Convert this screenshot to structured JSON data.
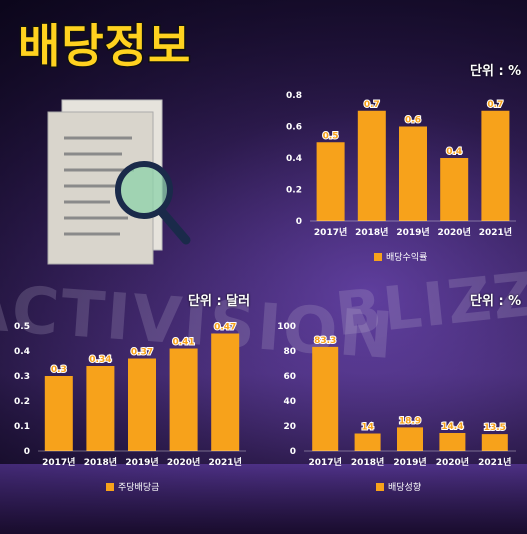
{
  "title": "배당정보",
  "colors": {
    "bar": "#f7a21b",
    "label": "#f7a21b",
    "axis_text": "#ffffff",
    "title": "#ffd21f"
  },
  "icons": {
    "document": "document-search-icon"
  },
  "watermark": {
    "left_text": "ACTIVISION",
    "right_text": "BLIZZARD"
  },
  "chart_data": [
    {
      "id": "dividend-yield",
      "type": "bar",
      "unit": "단위 : %",
      "categories": [
        "2017년",
        "2018년",
        "2019년",
        "2020년",
        "2021년"
      ],
      "series": [
        {
          "name": "배당수익률",
          "values": [
            0.5,
            0.7,
            0.6,
            0.4,
            0.7
          ]
        }
      ],
      "value_labels": [
        "0.5",
        "0.7",
        "0.6",
        "0.4",
        "0.7"
      ],
      "ylim": [
        0,
        0.8
      ],
      "yticks": [
        0,
        0.2,
        0.4,
        0.6,
        0.8
      ],
      "ytick_labels": [
        "0",
        "0.2",
        "0.4",
        "0.6",
        "0.8"
      ],
      "legend": "bottom-center",
      "grid": false
    },
    {
      "id": "dividend-per-share",
      "type": "bar",
      "unit": "단위 : 달러",
      "categories": [
        "2017년",
        "2018년",
        "2019년",
        "2020년",
        "2021년"
      ],
      "series": [
        {
          "name": "주당배당금",
          "values": [
            0.3,
            0.34,
            0.37,
            0.41,
            0.47
          ]
        }
      ],
      "value_labels": [
        "0.3",
        "0.34",
        "0.37",
        "0.41",
        "0.47"
      ],
      "ylim": [
        0,
        0.5
      ],
      "yticks": [
        0,
        0.1,
        0.2,
        0.3,
        0.4,
        0.5
      ],
      "ytick_labels": [
        "0",
        "0.1",
        "0.2",
        "0.3",
        "0.4",
        "0.5"
      ],
      "legend": "bottom-center",
      "grid": false
    },
    {
      "id": "dividend-growth",
      "type": "bar",
      "unit": "단위 : %",
      "categories": [
        "2017년",
        "2018년",
        "2019년",
        "2020년",
        "2021년"
      ],
      "series": [
        {
          "name": "배당성향",
          "values": [
            83.3,
            14,
            18.9,
            14.4,
            13.5
          ]
        }
      ],
      "value_labels": [
        "83.3",
        "14",
        "18.9",
        "14.4",
        "13.5"
      ],
      "ylim": [
        0,
        100
      ],
      "yticks": [
        0,
        20,
        40,
        60,
        80,
        100
      ],
      "ytick_labels": [
        "0",
        "20",
        "40",
        "60",
        "80",
        "100"
      ],
      "legend": "bottom-center",
      "grid": false
    }
  ]
}
